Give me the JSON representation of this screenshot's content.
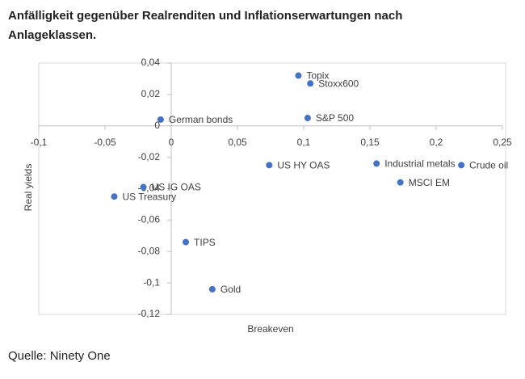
{
  "chart_data": {
    "type": "scatter",
    "title": "Anfälligkeit gegenüber Realrenditen und Inflationserwartungen nach Anlageklassen.",
    "xlabel": "Breakeven",
    "ylabel": "Real yields",
    "source": "Quelle: Ninety One",
    "color": "#4472c4",
    "grid": false,
    "labels": [
      "Topix",
      "Stoxx600",
      "German bonds",
      "S&P 500",
      "US HY OAS",
      "Industrial metals",
      "Crude oil",
      "MSCI EM",
      "US IG OAS",
      "US Treasury",
      "TIPS",
      "Gold"
    ],
    "x": [
      0.096,
      0.105,
      -0.008,
      0.103,
      0.074,
      0.155,
      0.219,
      0.173,
      -0.021,
      -0.043,
      0.011,
      0.031
    ],
    "values": [
      0.032,
      0.027,
      0.004,
      0.005,
      -0.025,
      -0.024,
      -0.025,
      -0.036,
      -0.039,
      -0.045,
      -0.074,
      -0.104
    ],
    "xlim": [
      -0.1,
      0.25
    ],
    "xticks": [
      {
        "value": -0.1,
        "label": "-0,1"
      },
      {
        "value": -0.05,
        "label": "-0,05"
      },
      0,
      {
        "value": 0.05,
        "label": "0,05"
      },
      {
        "value": 0.1,
        "label": "0,1"
      },
      {
        "value": 0.15,
        "label": "0,15"
      },
      {
        "value": 0.2,
        "label": "0,2"
      },
      {
        "value": 0.25,
        "label": "0,25"
      }
    ],
    "ylim": [
      -0.12,
      0.04
    ],
    "yticks": [
      {
        "value": 0.04,
        "label": "0,04"
      },
      {
        "value": 0.02,
        "label": "0,02"
      },
      0,
      {
        "value": -0.02,
        "label": "-0,02"
      },
      {
        "value": -0.04,
        "label": "-0,04"
      },
      {
        "value": -0.06,
        "label": "-0,06"
      },
      {
        "value": -0.08,
        "label": "-0,08"
      },
      {
        "value": -0.1,
        "label": "-0,1"
      },
      {
        "value": -0.12,
        "label": "-0,12"
      }
    ]
  }
}
